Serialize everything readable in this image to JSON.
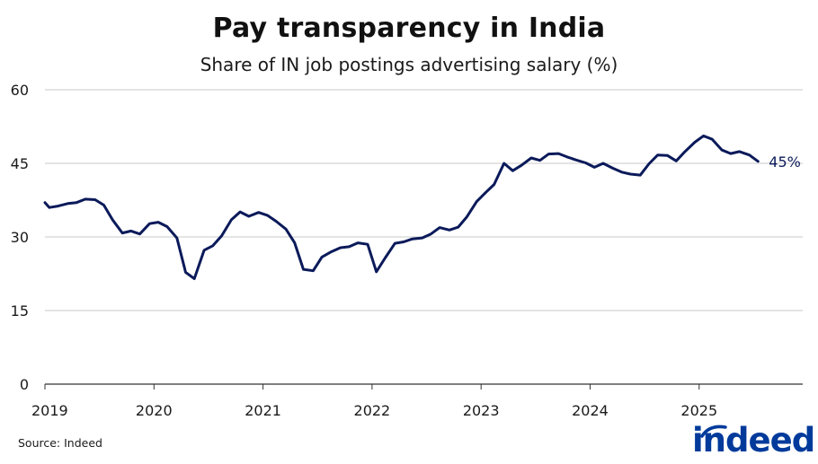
{
  "title": "Pay transparency in India",
  "subtitle": "Share of IN job postings advertising salary (%)",
  "source": "Source: Indeed",
  "logo_text": "indeed",
  "end_label": "45%",
  "colors": {
    "line": "#0b1a5a",
    "grid": "#c8c8c8",
    "brand": "#003a9b"
  },
  "chart_data": {
    "type": "line",
    "title": "Pay transparency in India",
    "subtitle": "Share of IN job postings advertising salary (%)",
    "xlabel": "",
    "ylabel": "",
    "ylim": [
      0,
      60
    ],
    "yticks": [
      0,
      15,
      30,
      45,
      60
    ],
    "xlim": [
      2019.0,
      2026.0
    ],
    "xticks": [
      2019,
      2020,
      2021,
      2022,
      2023,
      2024,
      2025
    ],
    "xtick_labels": [
      "2019",
      "2020",
      "2021",
      "2022",
      "2023",
      "2024",
      "2025"
    ],
    "grid": "horizontal",
    "legend": "none",
    "series": [
      {
        "x": [
          2019.0,
          2019.04,
          2019.12,
          2019.21,
          2019.29,
          2019.37,
          2019.46,
          2019.54,
          2019.62,
          2019.71,
          2019.79,
          2019.87,
          2019.96,
          2020.04,
          2020.12,
          2020.21,
          2020.29,
          2020.37,
          2020.46,
          2020.54,
          2020.62,
          2020.71,
          2020.79,
          2020.87,
          2020.96,
          2021.04,
          2021.12,
          2021.21,
          2021.29,
          2021.37,
          2021.46,
          2021.54,
          2021.62,
          2021.71,
          2021.79,
          2021.87,
          2021.96,
          2022.04,
          2022.12,
          2022.21,
          2022.29,
          2022.37,
          2022.46,
          2022.54,
          2022.62,
          2022.71,
          2022.79,
          2022.87,
          2022.96,
          2023.04,
          2023.12,
          2023.21,
          2023.29,
          2023.37,
          2023.46,
          2023.54,
          2023.62,
          2023.71,
          2023.79,
          2023.87,
          2023.96,
          2024.04,
          2024.12,
          2024.21,
          2024.29,
          2024.37,
          2024.46,
          2024.54,
          2024.62,
          2024.71,
          2024.79,
          2024.87,
          2024.96,
          2025.04,
          2025.12,
          2025.21,
          2025.29,
          2025.37,
          2025.46,
          2025.54
        ],
        "values": [
          37.0,
          36.0,
          36.3,
          36.8,
          37.0,
          37.7,
          37.6,
          36.5,
          33.5,
          30.8,
          31.2,
          30.6,
          32.7,
          33.0,
          32.1,
          29.8,
          22.8,
          21.5,
          27.3,
          28.2,
          30.2,
          33.5,
          35.1,
          34.2,
          35.0,
          34.4,
          33.2,
          31.6,
          28.8,
          23.4,
          23.1,
          25.9,
          26.9,
          27.8,
          28.0,
          28.8,
          28.5,
          22.9,
          25.7,
          28.7,
          29.0,
          29.6,
          29.8,
          30.6,
          31.9,
          31.4,
          32.0,
          34.1,
          37.2,
          39.0,
          40.7,
          45.0,
          43.5,
          44.6,
          46.1,
          45.6,
          46.9,
          47.0,
          46.3,
          45.7,
          45.1,
          44.2,
          45.0,
          44.0,
          43.2,
          42.8,
          42.6,
          44.9,
          46.7,
          46.6,
          45.5,
          47.4,
          49.3,
          50.6,
          49.9,
          47.7,
          47.0,
          47.4,
          46.7,
          45.4
        ]
      }
    ],
    "annotations": [
      {
        "text": "45%",
        "x": 2025.54,
        "y": 45.4
      }
    ]
  }
}
